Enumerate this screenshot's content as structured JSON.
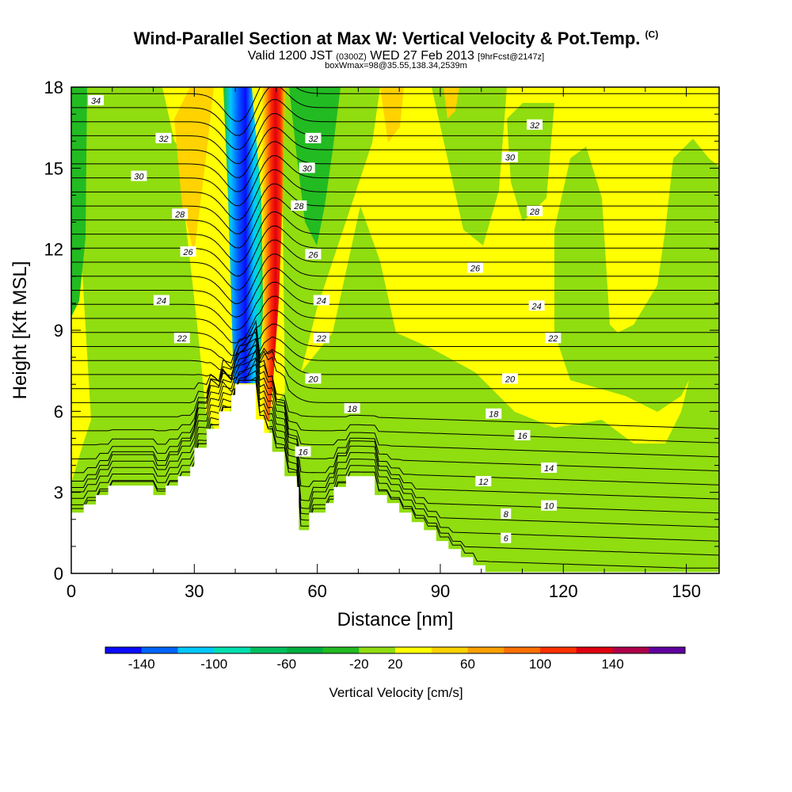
{
  "header": {
    "title": "Wind-Parallel Section at Max W: Vertical Velocity & Pot.Temp.",
    "copyright": "(C)",
    "valid_prefix": "Valid 1200 JST",
    "utc_time": "(0300Z)",
    "date": "WED 27 Feb 2013",
    "forecast": "[9hrFcst@2147z]",
    "box": "boxWmax=98@35.55,138.34,2539m"
  },
  "chart_data": {
    "type": "heatmap",
    "xlabel": "Distance [nm]",
    "ylabel": "Height [Kft MSL]",
    "xlim": [
      0,
      158
    ],
    "ylim": [
      0,
      18
    ],
    "xticks": [
      0,
      30,
      60,
      90,
      120,
      150
    ],
    "yticks": [
      0,
      3,
      6,
      9,
      12,
      15,
      18
    ],
    "colorbar": {
      "title": "Vertical Velocity [cm/s]",
      "labels": [
        -140,
        -100,
        -60,
        -20,
        20,
        60,
        100,
        140
      ],
      "bounds": [
        -160,
        -140,
        -120,
        -100,
        -80,
        -60,
        -40,
        -20,
        20,
        40,
        60,
        80,
        100,
        120,
        140,
        160
      ],
      "colors": [
        "#0a0aff",
        "#0064ff",
        "#00c8ff",
        "#00e0b0",
        "#00c060",
        "#00b040",
        "#22bb22",
        "#90dd10",
        "#ffff00",
        "#ffd200",
        "#ffa000",
        "#ff7000",
        "#ff3000",
        "#e00010",
        "#b0004a",
        "#6000a0"
      ]
    },
    "terrain": [
      [
        0,
        2.25
      ],
      [
        3,
        2.25
      ],
      [
        3,
        2.55
      ],
      [
        6,
        2.55
      ],
      [
        6,
        2.9
      ],
      [
        9,
        2.9
      ],
      [
        9,
        3.25
      ],
      [
        20,
        3.25
      ],
      [
        20,
        2.9
      ],
      [
        23,
        2.9
      ],
      [
        23,
        3.25
      ],
      [
        26,
        3.25
      ],
      [
        26,
        3.6
      ],
      [
        29,
        3.6
      ],
      [
        29,
        3.95
      ],
      [
        30,
        3.95
      ],
      [
        30,
        4.65
      ],
      [
        33,
        4.65
      ],
      [
        33,
        5.35
      ],
      [
        36,
        5.35
      ],
      [
        36,
        6
      ],
      [
        39,
        6
      ],
      [
        39,
        6.6
      ],
      [
        40,
        6.6
      ],
      [
        40,
        7
      ],
      [
        45,
        7
      ],
      [
        45,
        5.7
      ],
      [
        47,
        5.7
      ],
      [
        47,
        5.2
      ],
      [
        49,
        5.2
      ],
      [
        49,
        4.5
      ],
      [
        52,
        4.5
      ],
      [
        52,
        3.6
      ],
      [
        55,
        3.6
      ],
      [
        55,
        3.2
      ],
      [
        55.5,
        3.2
      ],
      [
        55.5,
        1.6
      ],
      [
        58,
        1.6
      ],
      [
        58,
        2.25
      ],
      [
        62,
        2.25
      ],
      [
        62,
        2.6
      ],
      [
        64,
        2.6
      ],
      [
        64,
        3.2
      ],
      [
        67,
        3.2
      ],
      [
        67,
        3.6
      ],
      [
        74,
        3.6
      ],
      [
        74,
        2.9
      ],
      [
        77,
        2.9
      ],
      [
        77,
        2.6
      ],
      [
        80,
        2.6
      ],
      [
        80,
        2.25
      ],
      [
        83,
        2.25
      ],
      [
        83,
        1.9
      ],
      [
        86,
        1.9
      ],
      [
        86,
        1.6
      ],
      [
        89,
        1.6
      ],
      [
        89,
        1.2
      ],
      [
        92,
        1.2
      ],
      [
        92,
        0.9
      ],
      [
        95,
        0.9
      ],
      [
        95,
        0.6
      ],
      [
        98,
        0.6
      ],
      [
        98,
        0.3
      ],
      [
        101,
        0.3
      ],
      [
        101,
        0.05
      ],
      [
        158,
        0.05
      ]
    ],
    "theta_levels": [
      6,
      8,
      10,
      12,
      14,
      16,
      18,
      20,
      22,
      24,
      26,
      28,
      30,
      32,
      34
    ],
    "contour_labels": [
      {
        "text": "34",
        "x": 6,
        "y": 17.5
      },
      {
        "text": "32",
        "x": 22.5,
        "y": 16.1
      },
      {
        "text": "30",
        "x": 16.5,
        "y": 14.7
      },
      {
        "text": "28",
        "x": 26.5,
        "y": 13.3
      },
      {
        "text": "26",
        "x": 28.5,
        "y": 11.9
      },
      {
        "text": "24",
        "x": 22,
        "y": 10.1
      },
      {
        "text": "22",
        "x": 27,
        "y": 8.7
      },
      {
        "text": "32",
        "x": 59,
        "y": 16.1
      },
      {
        "text": "30",
        "x": 57.5,
        "y": 15
      },
      {
        "text": "28",
        "x": 55.5,
        "y": 13.6
      },
      {
        "text": "26",
        "x": 59,
        "y": 11.8
      },
      {
        "text": "24",
        "x": 61,
        "y": 10.1
      },
      {
        "text": "22",
        "x": 61,
        "y": 8.7
      },
      {
        "text": "20",
        "x": 59,
        "y": 7.2
      },
      {
        "text": "18",
        "x": 68.5,
        "y": 6.1
      },
      {
        "text": "16",
        "x": 56.5,
        "y": 4.5
      },
      {
        "text": "32",
        "x": 113,
        "y": 16.6
      },
      {
        "text": "30",
        "x": 107,
        "y": 15.4
      },
      {
        "text": "28",
        "x": 113,
        "y": 13.4
      },
      {
        "text": "26",
        "x": 98.5,
        "y": 11.3
      },
      {
        "text": "24",
        "x": 113.5,
        "y": 9.9
      },
      {
        "text": "22",
        "x": 117.5,
        "y": 8.7
      },
      {
        "text": "20",
        "x": 107,
        "y": 7.2
      },
      {
        "text": "18",
        "x": 103,
        "y": 5.9
      },
      {
        "text": "16",
        "x": 110,
        "y": 5.1
      },
      {
        "text": "14",
        "x": 116.5,
        "y": 3.9
      },
      {
        "text": "12",
        "x": 100.5,
        "y": 3.4
      },
      {
        "text": "10",
        "x": 116.5,
        "y": 2.5
      },
      {
        "text": "8",
        "x": 106,
        "y": 2.2
      },
      {
        "text": "6",
        "x": 106,
        "y": 1.3
      }
    ]
  }
}
